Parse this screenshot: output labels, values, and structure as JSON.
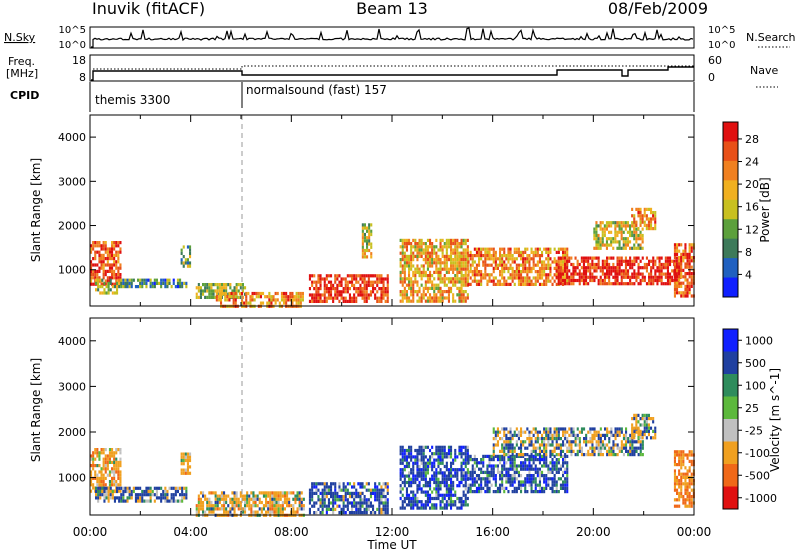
{
  "header": {
    "station": "Inuvik (fitACF)",
    "beam": "Beam 13",
    "date": "08/Feb/2009"
  },
  "nsky_panel": {
    "left_label": "N.Sky",
    "right_label": "N.Search",
    "tick_top": "10^5",
    "tick_bottom": "10^0"
  },
  "freq_panel": {
    "left_label_line1": "Freq.",
    "left_label_line2": "[MHz]",
    "right_label": "Nave",
    "left_ticks": [
      "18",
      "8"
    ],
    "right_ticks": [
      "60",
      "0"
    ]
  },
  "cpid_panel": {
    "label": "CPID",
    "segments": [
      {
        "label": "themis 3300",
        "start_hour": 0
      },
      {
        "label": "normalsound (fast) 157",
        "start_hour": 6
      }
    ]
  },
  "colors": {
    "power_scale": [
      "#1020ff",
      "#2060c0",
      "#3d7a5a",
      "#5ca03c",
      "#c8c020",
      "#f0b020",
      "#f08020",
      "#e85018",
      "#e01010"
    ],
    "velocity_scale": [
      "#e01010",
      "#f06818",
      "#f0a020",
      "#c0c0c0",
      "#5cb83c",
      "#2e8c5c",
      "#2040a0",
      "#1020ff"
    ]
  },
  "chart_data": [
    {
      "type": "heatmap",
      "name": "power",
      "ylabel": "Slant Range [km]",
      "xlabel": "",
      "ylim": [
        180,
        4500
      ],
      "y_ticks": [
        1000,
        2000,
        3000,
        4000
      ],
      "colorbar": {
        "label": "Power [dB]",
        "ticks": [
          4,
          8,
          12,
          16,
          20,
          24,
          28
        ],
        "range": [
          0,
          31
        ]
      },
      "regions": [
        {
          "x0": 0.0,
          "x1": 1.2,
          "y0": 700,
          "y1": 1650,
          "value": 26
        },
        {
          "x0": 0.2,
          "x1": 1.2,
          "y0": 500,
          "y1": 800,
          "value": 14
        },
        {
          "x0": 1.2,
          "x1": 3.8,
          "y0": 600,
          "y1": 800,
          "value": 10
        },
        {
          "x0": 3.6,
          "x1": 4.0,
          "y0": 1100,
          "y1": 1550,
          "value": 13
        },
        {
          "x0": 4.2,
          "x1": 6.2,
          "y0": 400,
          "y1": 700,
          "value": 14
        },
        {
          "x0": 5.0,
          "x1": 8.5,
          "y0": 180,
          "y1": 500,
          "value": 22
        },
        {
          "x0": 8.7,
          "x1": 11.8,
          "y0": 250,
          "y1": 900,
          "value": 28
        },
        {
          "x0": 10.8,
          "x1": 11.2,
          "y0": 1300,
          "y1": 2050,
          "value": 16
        },
        {
          "x0": 12.3,
          "x1": 15.0,
          "y0": 300,
          "y1": 1700,
          "value": 20
        },
        {
          "x0": 15.0,
          "x1": 19.0,
          "y0": 700,
          "y1": 1500,
          "value": 22
        },
        {
          "x0": 18.5,
          "x1": 23.5,
          "y0": 700,
          "y1": 1300,
          "value": 28
        },
        {
          "x0": 20.0,
          "x1": 22.0,
          "y0": 1500,
          "y1": 2100,
          "value": 17
        },
        {
          "x0": 21.5,
          "x1": 22.5,
          "y0": 1900,
          "y1": 2400,
          "value": 21
        },
        {
          "x0": 23.2,
          "x1": 24.0,
          "y0": 400,
          "y1": 1600,
          "value": 25
        }
      ]
    },
    {
      "type": "heatmap",
      "name": "velocity",
      "ylabel": "Slant Range [km]",
      "xlabel": "Time UT",
      "ylim": [
        180,
        4500
      ],
      "y_ticks": [
        1000,
        2000,
        3000,
        4000
      ],
      "x_ticks": [
        "00:00",
        "04:00",
        "08:00",
        "12:00",
        "16:00",
        "20:00",
        "00:00"
      ],
      "colorbar": {
        "label": "Velocity [m s^-1]",
        "ticks": [
          "1000",
          "500",
          "100",
          "25",
          "-25",
          "-100",
          "-500",
          "-1000"
        ]
      },
      "regions": [
        {
          "x0": 0.0,
          "x1": 1.2,
          "y0": 700,
          "y1": 1650,
          "value": -300
        },
        {
          "x0": 0.2,
          "x1": 3.8,
          "y0": 500,
          "y1": 800,
          "value": 50
        },
        {
          "x0": 3.6,
          "x1": 4.0,
          "y0": 1100,
          "y1": 1550,
          "value": -200
        },
        {
          "x0": 4.2,
          "x1": 8.5,
          "y0": 180,
          "y1": 700,
          "value": -200
        },
        {
          "x0": 8.7,
          "x1": 11.8,
          "y0": 250,
          "y1": 900,
          "value": 200
        },
        {
          "x0": 12.3,
          "x1": 15.0,
          "y0": 300,
          "y1": 1700,
          "value": 300
        },
        {
          "x0": 15.0,
          "x1": 19.0,
          "y0": 700,
          "y1": 1500,
          "value": 250
        },
        {
          "x0": 16.0,
          "x1": 22.0,
          "y0": 1500,
          "y1": 2100,
          "value": 0
        },
        {
          "x0": 21.5,
          "x1": 22.5,
          "y0": 1900,
          "y1": 2400,
          "value": -150
        },
        {
          "x0": 23.2,
          "x1": 24.0,
          "y0": 400,
          "y1": 1600,
          "value": -500
        }
      ]
    }
  ]
}
